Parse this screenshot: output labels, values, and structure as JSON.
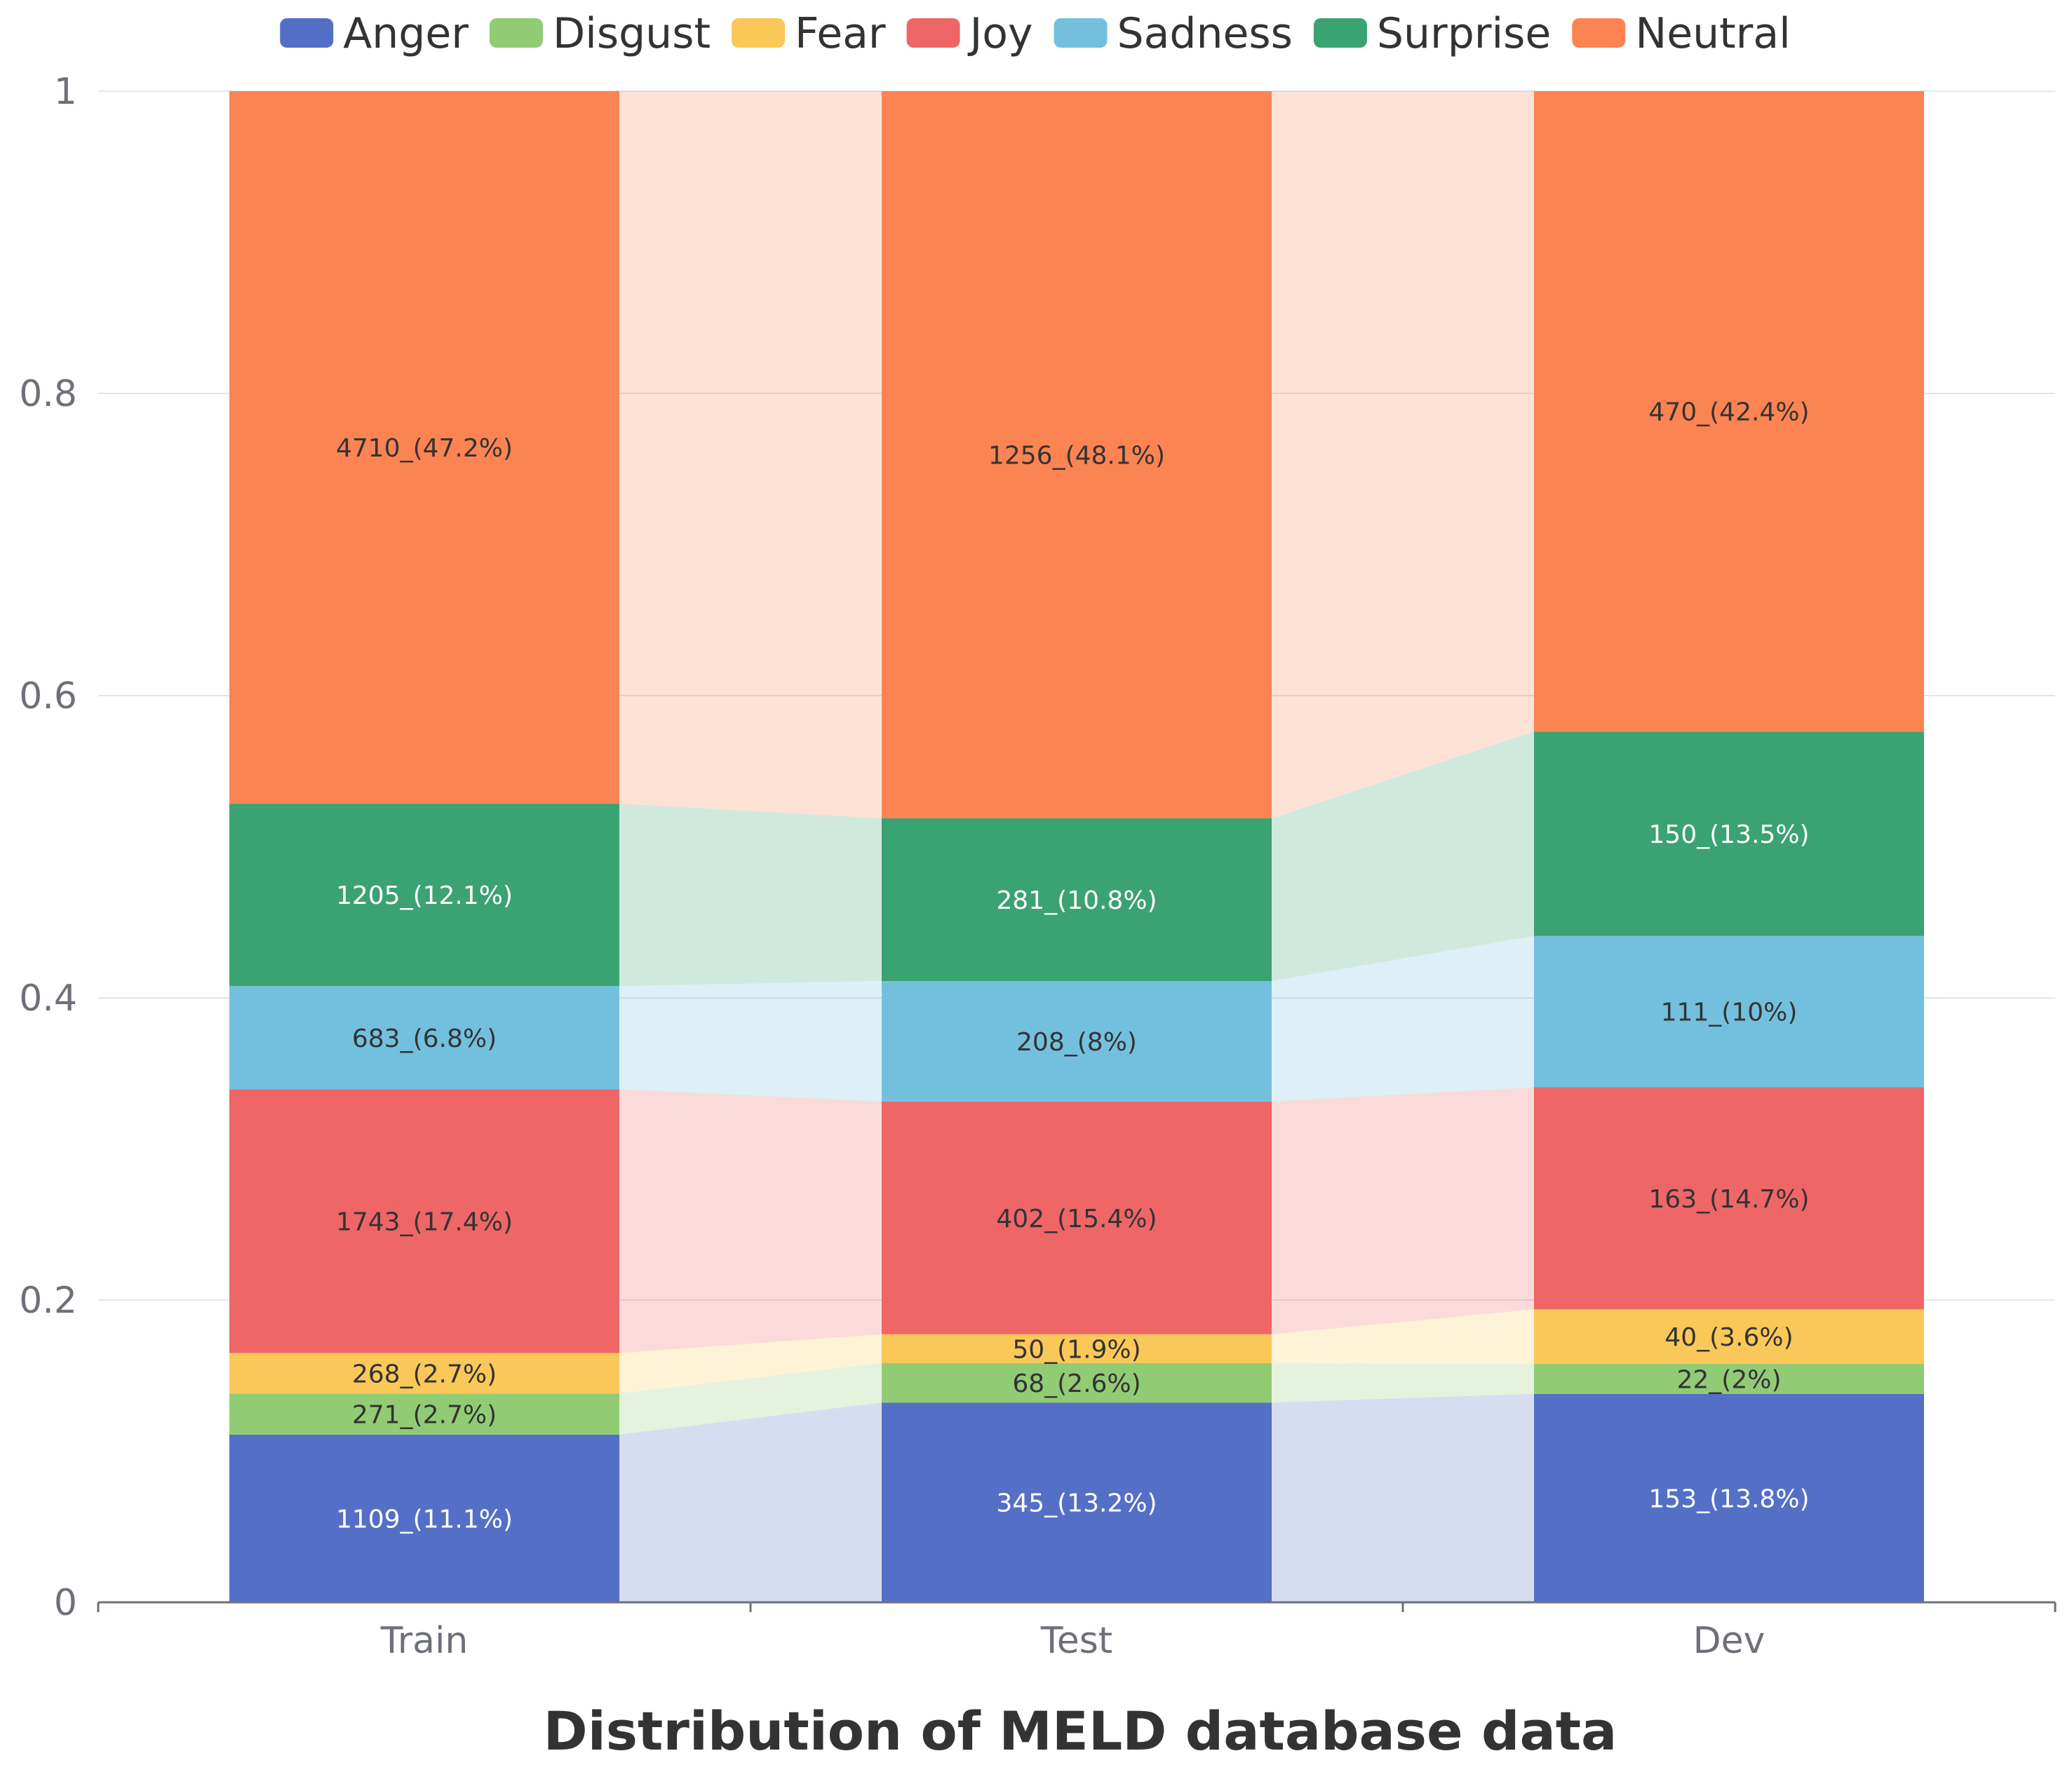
{
  "chart_data": {
    "type": "bar",
    "stacked": true,
    "normalized": true,
    "title": "Distribution of MELD database data",
    "xlabel": "",
    "ylabel": "",
    "ylim": [
      0,
      1
    ],
    "yticks": [
      0,
      0.2,
      0.4,
      0.6,
      0.8,
      1
    ],
    "ytick_labels": [
      "0",
      "0.2",
      "0.4",
      "0.6",
      "0.8",
      "1"
    ],
    "grid": true,
    "legend_position": "top-center",
    "categories": [
      "Train",
      "Test",
      "Dev"
    ],
    "series": [
      {
        "name": "Anger",
        "color": "#5470c6",
        "label_color": "#ffffff",
        "values": [
          1109,
          345,
          153
        ],
        "labels": [
          "1109_(11.1%)",
          "345_(13.2%)",
          "153_(13.8%)"
        ]
      },
      {
        "name": "Disgust",
        "color": "#91cc75",
        "label_color": "#333333",
        "values": [
          271,
          68,
          22
        ],
        "labels": [
          "271_(2.7%)",
          "68_(2.6%)",
          "22_(2%)"
        ]
      },
      {
        "name": "Fear",
        "color": "#fac858",
        "label_color": "#333333",
        "values": [
          268,
          50,
          40
        ],
        "labels": [
          "268_(2.7%)",
          "50_(1.9%)",
          "40_(3.6%)"
        ]
      },
      {
        "name": "Joy",
        "color": "#ee6666",
        "label_color": "#333333",
        "values": [
          1743,
          402,
          163
        ],
        "labels": [
          "1743_(17.4%)",
          "402_(15.4%)",
          "163_(14.7%)"
        ]
      },
      {
        "name": "Sadness",
        "color": "#73c0de",
        "label_color": "#333333",
        "values": [
          683,
          208,
          111
        ],
        "labels": [
          "683_(6.8%)",
          "208_(8%)",
          "111_(10%)"
        ]
      },
      {
        "name": "Surprise",
        "color": "#3ba272",
        "label_color": "#ffffff",
        "values": [
          1205,
          281,
          150
        ],
        "labels": [
          "1205_(12.1%)",
          "281_(10.8%)",
          "150_(13.5%)"
        ]
      },
      {
        "name": "Neutral",
        "color": "#fc8452",
        "label_color": "#333333",
        "values": [
          4710,
          1256,
          470
        ],
        "labels": [
          "4710_(47.2%)",
          "1256_(48.1%)",
          "470_(42.4%)"
        ]
      }
    ]
  }
}
